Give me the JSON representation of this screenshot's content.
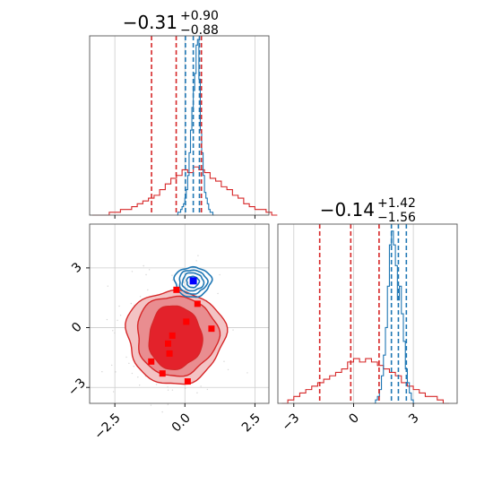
{
  "chart_data": {
    "type": "corner",
    "panels": [
      {
        "id": "marginal_x",
        "type": "histogram",
        "title": {
          "main": "−0.31",
          "sup": "+0.90",
          "sub": "−0.88"
        },
        "xlim": [
          -3.4,
          3.0
        ],
        "xticks": [
          -2.5,
          0.0,
          2.5
        ],
        "grid": true,
        "series": [
          {
            "color": "#d62728",
            "bins_from": -3.3,
            "bin_width": 0.2,
            "counts": [
              0,
              0,
              0,
              1,
              1,
              2,
              2,
              3,
              4,
              5,
              6,
              7,
              9,
              11,
              13,
              14,
              16,
              15,
              17,
              16,
              15,
              13,
              12,
              10,
              9,
              7,
              6,
              4,
              3,
              2,
              2,
              1,
              0
            ],
            "quantiles": [
              -1.19,
              -0.31,
              0.59
            ]
          },
          {
            "color": "#1f77b4",
            "bins_from": -0.3,
            "bin_width": 0.05,
            "counts": [
              0,
              1,
              1,
              2,
              3,
              4,
              6,
              9,
              14,
              22,
              30,
              38,
              44,
              50,
              60,
              62,
              48,
              30,
              22,
              14,
              8,
              6,
              4,
              2,
              1,
              1,
              0
            ],
            "quantiles": [
              0.02,
              0.3,
              0.52
            ]
          }
        ]
      },
      {
        "id": "marginal_y",
        "type": "histogram",
        "title": {
          "main": "−0.14",
          "sup": "+1.42",
          "sub": "−1.56"
        },
        "xlim": [
          -3.8,
          5.2
        ],
        "xticks": [
          -3,
          0,
          3
        ],
        "xtick_labels": [
          "−3",
          "0",
          "3"
        ],
        "grid": true,
        "series": [
          {
            "color": "#d62728",
            "bins_from": -3.6,
            "bin_width": 0.3,
            "counts": [
              0,
              1,
              2,
              3,
              4,
              5,
              6,
              7,
              8,
              9,
              10,
              12,
              13,
              12,
              13,
              12,
              11,
              10,
              9,
              8,
              6,
              5,
              4,
              3,
              2,
              2,
              1,
              0
            ],
            "quantiles": [
              -1.7,
              -0.14,
              1.28
            ]
          },
          {
            "color": "#1f77b4",
            "bins_from": 1.0,
            "bin_width": 0.1,
            "counts": [
              0,
              1,
              2,
              4,
              8,
              14,
              22,
              34,
              46,
              50,
              46,
              40,
              30,
              34,
              26,
              18,
              10,
              6,
              3,
              1,
              0
            ],
            "quantiles": [
              1.9,
              2.25,
              2.65
            ]
          }
        ]
      },
      {
        "id": "joint",
        "type": "contour",
        "xlim": [
          -3.4,
          3.0
        ],
        "ylim": [
          -3.8,
          5.2
        ],
        "xticks": [
          -2.5,
          0.0,
          2.5
        ],
        "yticks": [
          -3,
          0,
          3
        ],
        "xtick_labels": [
          "−2.5",
          "0.0",
          "2.5"
        ],
        "ytick_labels": [
          "−3",
          "0",
          "3"
        ],
        "grid": true,
        "red_markers": [
          [
            -0.3,
            1.9
          ],
          [
            0.45,
            1.2
          ],
          [
            0.05,
            0.3
          ],
          [
            -0.45,
            -0.4
          ],
          [
            -0.6,
            -0.8
          ],
          [
            -0.55,
            -1.3
          ],
          [
            -1.2,
            -1.7
          ],
          [
            -0.8,
            -2.3
          ],
          [
            0.1,
            -2.7
          ],
          [
            0.95,
            -0.05
          ]
        ],
        "blue_marker": [
          0.3,
          2.35
        ]
      }
    ]
  },
  "colors": {
    "red": "#d62728",
    "red_fill": "#e3222b",
    "blue": "#1f77b4",
    "grid": "#cccccc",
    "marker_blue": "#0000ff",
    "marker_red": "#ff0000"
  }
}
